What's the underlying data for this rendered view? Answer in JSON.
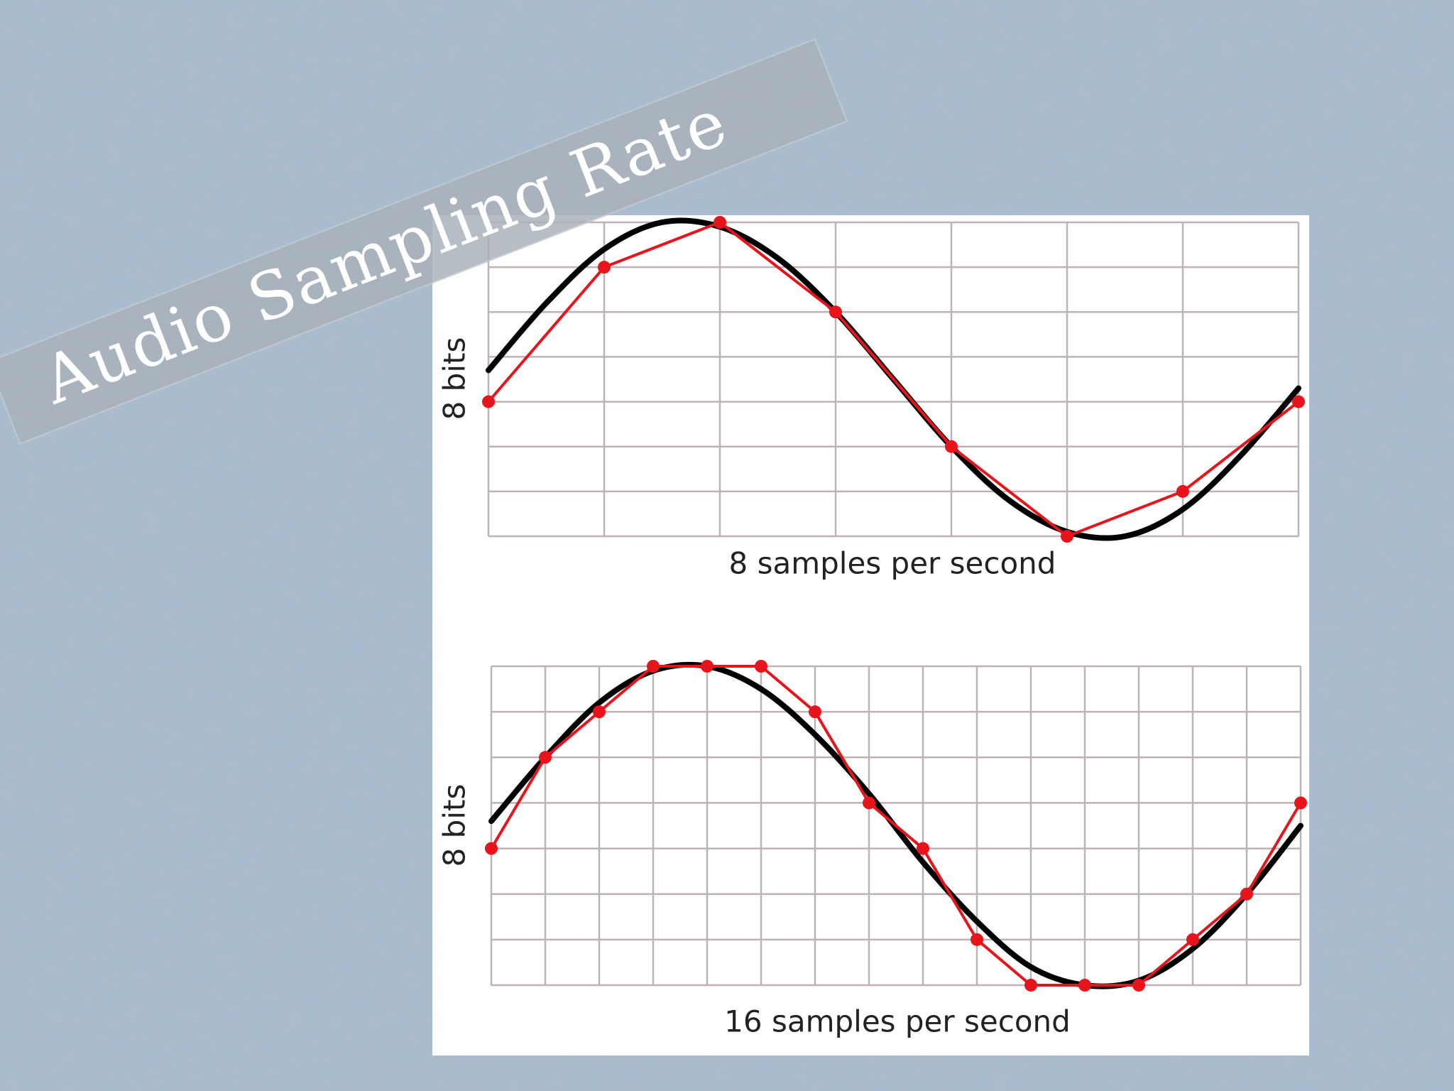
{
  "slide": {
    "title": "Audio Sampling Rate"
  },
  "chart_data": [
    {
      "type": "line",
      "xlabel": "8 samples per second",
      "ylabel": "8 bits",
      "xlim": [
        0,
        7
      ],
      "ylim": [
        0,
        7
      ],
      "xticks": [
        0,
        1,
        2,
        3,
        4,
        5,
        6,
        7
      ],
      "yticks": [
        0,
        1,
        2,
        3,
        4,
        5,
        6,
        7
      ],
      "grid": true,
      "series": [
        {
          "color": "#000000",
          "smooth": true,
          "x": [
            0,
            0.5,
            1,
            1.5,
            2,
            2.5,
            3,
            3.5,
            4,
            4.5,
            5,
            5.5,
            6,
            6.5,
            7
          ],
          "values": [
            3.7,
            5.2,
            6.4,
            7.0,
            6.9,
            6.2,
            5.0,
            3.5,
            2.0,
            0.8,
            0.1,
            0.0,
            0.6,
            1.8,
            3.3
          ]
        },
        {
          "color": "#e8141c",
          "markers": true,
          "x": [
            0,
            1,
            2,
            3,
            4,
            5,
            6,
            7
          ],
          "values": [
            3,
            6,
            7,
            5,
            2,
            0,
            1,
            3
          ]
        }
      ]
    },
    {
      "type": "line",
      "xlabel": "16 samples per second",
      "ylabel": "8 bits",
      "xlim": [
        0,
        15
      ],
      "ylim": [
        0,
        7
      ],
      "xticks": [
        0,
        1,
        2,
        3,
        4,
        5,
        6,
        7,
        8,
        9,
        10,
        11,
        12,
        13,
        14,
        15
      ],
      "yticks": [
        0,
        1,
        2,
        3,
        4,
        5,
        6,
        7
      ],
      "grid": true,
      "series": [
        {
          "color": "#000000",
          "smooth": true,
          "x": [
            0,
            1,
            2,
            3,
            4,
            5,
            6,
            7,
            8,
            9,
            10,
            11,
            12,
            13,
            14,
            15
          ],
          "values": [
            3.6,
            5.0,
            6.2,
            6.9,
            7.0,
            6.5,
            5.5,
            4.2,
            2.7,
            1.4,
            0.4,
            0.0,
            0.1,
            0.8,
            2.0,
            3.5
          ]
        },
        {
          "color": "#e8141c",
          "markers": true,
          "x": [
            0,
            1,
            2,
            3,
            4,
            5,
            6,
            7,
            8,
            9,
            10,
            11,
            12,
            13,
            14,
            15
          ],
          "values": [
            3,
            5,
            6,
            7,
            7,
            7,
            6,
            4,
            3,
            1,
            0,
            0,
            0,
            1,
            2,
            4
          ]
        }
      ]
    }
  ]
}
